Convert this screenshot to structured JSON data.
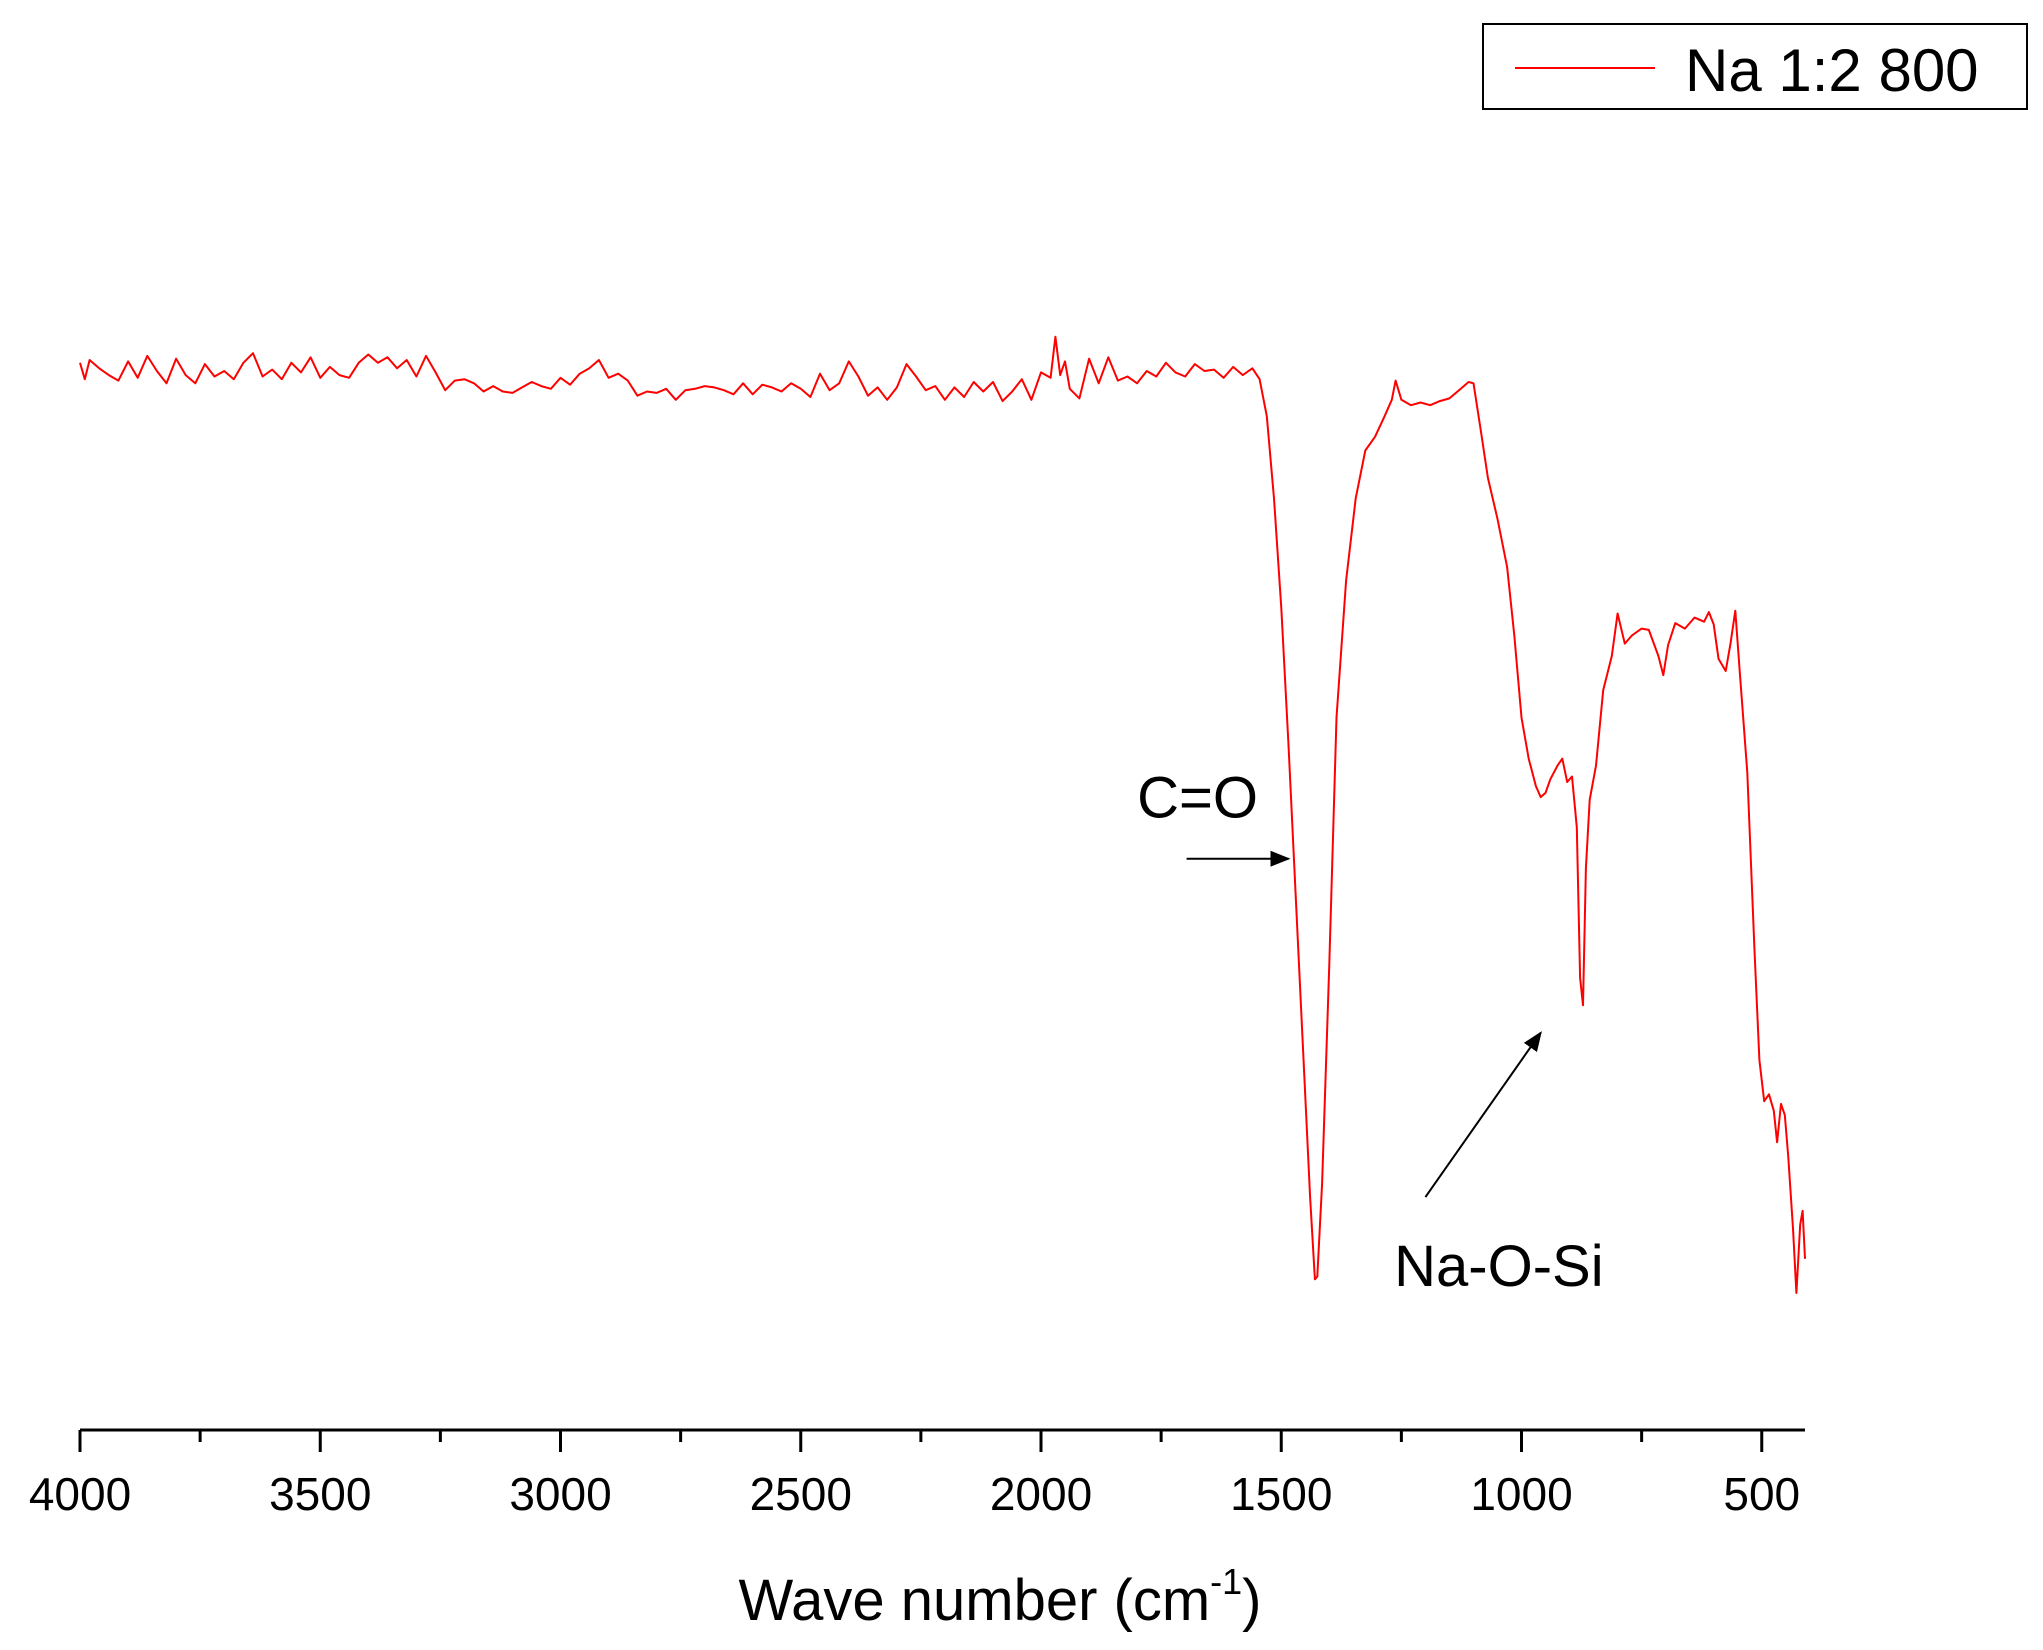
{
  "chart_data": {
    "type": "line",
    "title": "",
    "xlabel": "Wave number (cm",
    "xlabel_sup": "-1",
    "xlabel_close": ")",
    "ylabel": "",
    "x_reversed": true,
    "xlim": [
      4000,
      410
    ],
    "ylim": [
      0,
      100
    ],
    "x_major_ticks": [
      4000,
      3500,
      3000,
      2500,
      2000,
      1500,
      1000,
      500
    ],
    "x_tick_labels": [
      "4000",
      "3500",
      "3000",
      "2500",
      "2000",
      "1500",
      "1000",
      "500"
    ],
    "x_minor_ticks": [
      3750,
      3250,
      2750,
      2250,
      1750,
      1250,
      750
    ],
    "grid": false,
    "legend_position": "top-right",
    "series": [
      {
        "name": "Na 1:2 800",
        "color": "#ff0000",
        "points": [
          [
            4000,
            77.9
          ],
          [
            3990,
            76.7
          ],
          [
            3980,
            78.1
          ],
          [
            3960,
            77.5
          ],
          [
            3940,
            77.0
          ],
          [
            3920,
            76.6
          ],
          [
            3900,
            78.0
          ],
          [
            3880,
            76.8
          ],
          [
            3860,
            78.4
          ],
          [
            3840,
            77.3
          ],
          [
            3820,
            76.4
          ],
          [
            3800,
            78.2
          ],
          [
            3780,
            77.0
          ],
          [
            3760,
            76.4
          ],
          [
            3740,
            77.8
          ],
          [
            3720,
            76.9
          ],
          [
            3700,
            77.3
          ],
          [
            3680,
            76.7
          ],
          [
            3660,
            77.9
          ],
          [
            3640,
            78.6
          ],
          [
            3620,
            76.9
          ],
          [
            3600,
            77.4
          ],
          [
            3580,
            76.7
          ],
          [
            3560,
            77.9
          ],
          [
            3540,
            77.2
          ],
          [
            3520,
            78.3
          ],
          [
            3500,
            76.8
          ],
          [
            3480,
            77.6
          ],
          [
            3460,
            77.0
          ],
          [
            3440,
            76.8
          ],
          [
            3420,
            77.9
          ],
          [
            3400,
            78.5
          ],
          [
            3380,
            77.9
          ],
          [
            3360,
            78.3
          ],
          [
            3340,
            77.5
          ],
          [
            3320,
            78.1
          ],
          [
            3300,
            76.9
          ],
          [
            3280,
            78.4
          ],
          [
            3260,
            77.2
          ],
          [
            3240,
            75.9
          ],
          [
            3220,
            76.6
          ],
          [
            3200,
            76.7
          ],
          [
            3180,
            76.4
          ],
          [
            3160,
            75.8
          ],
          [
            3140,
            76.2
          ],
          [
            3120,
            75.8
          ],
          [
            3100,
            75.7
          ],
          [
            3080,
            76.1
          ],
          [
            3060,
            76.5
          ],
          [
            3040,
            76.2
          ],
          [
            3020,
            76.0
          ],
          [
            3000,
            76.8
          ],
          [
            2980,
            76.3
          ],
          [
            2960,
            77.1
          ],
          [
            2940,
            77.5
          ],
          [
            2920,
            78.1
          ],
          [
            2900,
            76.8
          ],
          [
            2880,
            77.1
          ],
          [
            2860,
            76.6
          ],
          [
            2840,
            75.5
          ],
          [
            2820,
            75.8
          ],
          [
            2800,
            75.7
          ],
          [
            2780,
            76.0
          ],
          [
            2760,
            75.2
          ],
          [
            2740,
            75.9
          ],
          [
            2720,
            76.0
          ],
          [
            2700,
            76.2
          ],
          [
            2680,
            76.1
          ],
          [
            2660,
            75.9
          ],
          [
            2640,
            75.6
          ],
          [
            2620,
            76.4
          ],
          [
            2600,
            75.6
          ],
          [
            2580,
            76.3
          ],
          [
            2560,
            76.1
          ],
          [
            2540,
            75.8
          ],
          [
            2520,
            76.4
          ],
          [
            2500,
            76.0
          ],
          [
            2480,
            75.4
          ],
          [
            2460,
            77.1
          ],
          [
            2440,
            75.9
          ],
          [
            2420,
            76.4
          ],
          [
            2400,
            78.0
          ],
          [
            2380,
            76.9
          ],
          [
            2360,
            75.5
          ],
          [
            2340,
            76.1
          ],
          [
            2320,
            75.2
          ],
          [
            2300,
            76.1
          ],
          [
            2280,
            77.8
          ],
          [
            2260,
            76.9
          ],
          [
            2240,
            75.9
          ],
          [
            2220,
            76.2
          ],
          [
            2200,
            75.2
          ],
          [
            2180,
            76.1
          ],
          [
            2160,
            75.4
          ],
          [
            2140,
            76.5
          ],
          [
            2120,
            75.8
          ],
          [
            2100,
            76.5
          ],
          [
            2080,
            75.1
          ],
          [
            2060,
            75.8
          ],
          [
            2040,
            76.7
          ],
          [
            2020,
            75.2
          ],
          [
            2000,
            77.2
          ],
          [
            1980,
            76.8
          ],
          [
            1970,
            79.8
          ],
          [
            1960,
            77.0
          ],
          [
            1950,
            78.0
          ],
          [
            1940,
            76.0
          ],
          [
            1920,
            75.3
          ],
          [
            1900,
            78.2
          ],
          [
            1880,
            76.4
          ],
          [
            1860,
            78.3
          ],
          [
            1840,
            76.6
          ],
          [
            1820,
            76.9
          ],
          [
            1800,
            76.4
          ],
          [
            1780,
            77.3
          ],
          [
            1760,
            76.9
          ],
          [
            1740,
            77.9
          ],
          [
            1720,
            77.2
          ],
          [
            1700,
            76.9
          ],
          [
            1680,
            77.8
          ],
          [
            1660,
            77.3
          ],
          [
            1640,
            77.4
          ],
          [
            1620,
            76.8
          ],
          [
            1600,
            77.6
          ],
          [
            1580,
            77.0
          ],
          [
            1560,
            77.5
          ],
          [
            1545,
            76.7
          ],
          [
            1530,
            74.0
          ],
          [
            1515,
            68.0
          ],
          [
            1500,
            60.0
          ],
          [
            1485,
            50.0
          ],
          [
            1470,
            39.0
          ],
          [
            1455,
            28.0
          ],
          [
            1440,
            17.0
          ],
          [
            1430,
            11.0
          ],
          [
            1425,
            11.2
          ],
          [
            1415,
            18.0
          ],
          [
            1400,
            34.0
          ],
          [
            1385,
            52.0
          ],
          [
            1365,
            62.0
          ],
          [
            1345,
            68.0
          ],
          [
            1325,
            71.5
          ],
          [
            1305,
            72.5
          ],
          [
            1285,
            74.0
          ],
          [
            1270,
            75.2
          ],
          [
            1262,
            76.6
          ],
          [
            1250,
            75.2
          ],
          [
            1230,
            74.8
          ],
          [
            1210,
            75.0
          ],
          [
            1190,
            74.8
          ],
          [
            1170,
            75.1
          ],
          [
            1150,
            75.3
          ],
          [
            1130,
            75.9
          ],
          [
            1110,
            76.5
          ],
          [
            1100,
            76.4
          ],
          [
            1085,
            73.0
          ],
          [
            1070,
            69.5
          ],
          [
            1050,
            66.5
          ],
          [
            1030,
            63.0
          ],
          [
            1015,
            58.0
          ],
          [
            1000,
            52.0
          ],
          [
            985,
            49.0
          ],
          [
            970,
            47.0
          ],
          [
            960,
            46.2
          ],
          [
            950,
            46.5
          ],
          [
            940,
            47.5
          ],
          [
            925,
            48.5
          ],
          [
            915,
            49.0
          ],
          [
            905,
            47.3
          ],
          [
            895,
            47.7
          ],
          [
            885,
            44.0
          ],
          [
            878,
            33.0
          ],
          [
            872,
            31.0
          ],
          [
            866,
            41.0
          ],
          [
            858,
            46.0
          ],
          [
            845,
            48.5
          ],
          [
            830,
            54.0
          ],
          [
            812,
            56.5
          ],
          [
            800,
            59.6
          ],
          [
            785,
            57.4
          ],
          [
            770,
            58.0
          ],
          [
            750,
            58.5
          ],
          [
            735,
            58.4
          ],
          [
            715,
            56.5
          ],
          [
            705,
            55.1
          ],
          [
            695,
            57.3
          ],
          [
            680,
            58.9
          ],
          [
            660,
            58.5
          ],
          [
            640,
            59.3
          ],
          [
            620,
            59.0
          ],
          [
            610,
            59.7
          ],
          [
            600,
            58.8
          ],
          [
            590,
            56.3
          ],
          [
            575,
            55.4
          ],
          [
            565,
            57.4
          ],
          [
            555,
            59.8
          ],
          [
            545,
            55.0
          ],
          [
            530,
            48.0
          ],
          [
            515,
            35.0
          ],
          [
            505,
            27.0
          ],
          [
            495,
            24.0
          ],
          [
            485,
            24.5
          ],
          [
            475,
            23.3
          ],
          [
            468,
            21.0
          ],
          [
            460,
            23.8
          ],
          [
            452,
            23.0
          ],
          [
            445,
            20.0
          ],
          [
            435,
            14.7
          ],
          [
            428,
            10.0
          ],
          [
            420,
            15.0
          ],
          [
            415,
            16.0
          ],
          [
            410,
            12.5
          ]
        ]
      }
    ],
    "annotations": [
      {
        "text": "C=O",
        "text_x": 1800,
        "text_y": 44.7,
        "arrow_from": [
          1697,
          41.7
        ],
        "arrow_to": [
          1485,
          41.7
        ]
      },
      {
        "text": "Na-O-Si",
        "text_x": 1265,
        "text_y": 10.5,
        "arrow_from": [
          1200,
          17.0
        ],
        "arrow_to": [
          960,
          29.0
        ]
      }
    ]
  }
}
